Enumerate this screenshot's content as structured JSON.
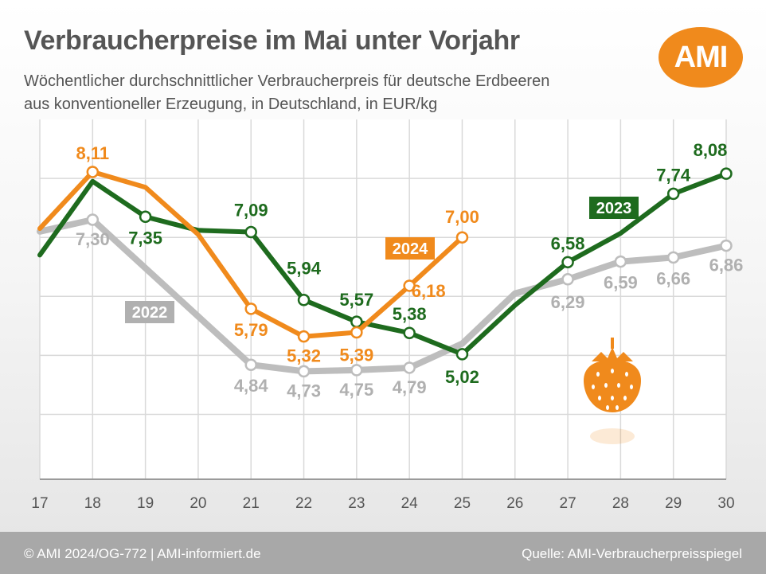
{
  "header": {
    "title": "Verbraucherpreise im Mai unter Vorjahr",
    "subtitle_line1": "Wöchentlicher durchschnittlicher Verbraucherpreis für deutsche Erdbeeren",
    "subtitle_line2": "aus konventioneller Erzeugung, in Deutschland, in EUR/kg",
    "logo_text": "AMI"
  },
  "footer": {
    "left": "© AMI 2024/OG-772 | AMI-informiert.de",
    "right": "Quelle: AMI-Verbraucherpreisspiegel"
  },
  "colors": {
    "s2022": "#bdbdbd",
    "s2023": "#1e6b1e",
    "s2024": "#f08a1c",
    "label2022": "#b0b0b0",
    "grid": "#d9d9d9",
    "strawberry": "#f08a1c"
  },
  "decoration": {
    "strawberry_icon": "strawberry-icon"
  },
  "chart_data": {
    "type": "line",
    "x": [
      "17",
      "18",
      "19",
      "20",
      "21",
      "22",
      "23",
      "24",
      "25",
      "26",
      "27",
      "28",
      "29",
      "30"
    ],
    "ylim": [
      2.9,
      9.0
    ],
    "grid": true,
    "series": [
      {
        "name": "2022",
        "values": [
          7.1,
          7.3,
          null,
          null,
          4.84,
          4.73,
          4.75,
          4.79,
          5.2,
          6.05,
          6.29,
          6.59,
          6.66,
          6.86
        ],
        "data_labels": [
          null,
          "7,30",
          null,
          null,
          "4,84",
          "4,73",
          "4,75",
          "4,79",
          null,
          null,
          "6,29",
          "6,59",
          "6,66",
          "6,86"
        ]
      },
      {
        "name": "2023",
        "values": [
          6.7,
          7.95,
          7.35,
          7.12,
          7.09,
          5.94,
          5.57,
          5.38,
          5.02,
          5.85,
          6.58,
          7.07,
          7.74,
          8.08
        ],
        "data_labels": [
          null,
          null,
          "7,35",
          null,
          "7,09",
          "5,94",
          "5,57",
          "5,38",
          "5,02",
          null,
          "6,58",
          null,
          "7,74",
          "8,08"
        ]
      },
      {
        "name": "2024",
        "values": [
          7.15,
          8.11,
          7.85,
          7.05,
          5.79,
          5.32,
          5.39,
          6.18,
          7.0,
          null,
          null,
          null,
          null,
          null
        ],
        "data_labels": [
          null,
          "8,11",
          null,
          null,
          "5,79",
          "5,32",
          "5,39",
          "6,18",
          "7,00",
          null,
          null,
          null,
          null,
          null
        ]
      }
    ]
  }
}
